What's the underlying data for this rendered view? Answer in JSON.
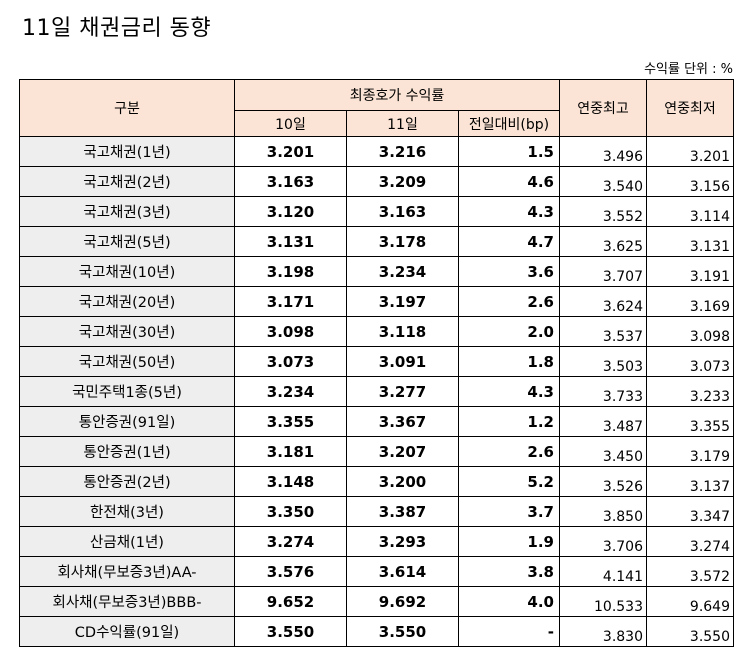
{
  "title": "11일 채권금리 동향",
  "unit_label": "수익률 단위 : %",
  "headers": {
    "category": "구분",
    "final_yield": "최종호가 수익률",
    "day10": "10일",
    "day11": "11일",
    "change": "전일대비(bp)",
    "year_high": "연중최고",
    "year_low": "연중최저"
  },
  "rows": [
    {
      "name": "국고채권(1년)",
      "d10": "3.201",
      "d11": "3.216",
      "chg": "1.5",
      "high": "3.496",
      "low": "3.201"
    },
    {
      "name": "국고채권(2년)",
      "d10": "3.163",
      "d11": "3.209",
      "chg": "4.6",
      "high": "3.540",
      "low": "3.156"
    },
    {
      "name": "국고채권(3년)",
      "d10": "3.120",
      "d11": "3.163",
      "chg": "4.3",
      "high": "3.552",
      "low": "3.114"
    },
    {
      "name": "국고채권(5년)",
      "d10": "3.131",
      "d11": "3.178",
      "chg": "4.7",
      "high": "3.625",
      "low": "3.131"
    },
    {
      "name": "국고채권(10년)",
      "d10": "3.198",
      "d11": "3.234",
      "chg": "3.6",
      "high": "3.707",
      "low": "3.191"
    },
    {
      "name": "국고채권(20년)",
      "d10": "3.171",
      "d11": "3.197",
      "chg": "2.6",
      "high": "3.624",
      "low": "3.169"
    },
    {
      "name": "국고채권(30년)",
      "d10": "3.098",
      "d11": "3.118",
      "chg": "2.0",
      "high": "3.537",
      "low": "3.098"
    },
    {
      "name": "국고채권(50년)",
      "d10": "3.073",
      "d11": "3.091",
      "chg": "1.8",
      "high": "3.503",
      "low": "3.073"
    },
    {
      "name": "국민주택1종(5년)",
      "d10": "3.234",
      "d11": "3.277",
      "chg": "4.3",
      "high": "3.733",
      "low": "3.233"
    },
    {
      "name": "통안증권(91일)",
      "d10": "3.355",
      "d11": "3.367",
      "chg": "1.2",
      "high": "3.487",
      "low": "3.355"
    },
    {
      "name": "통안증권(1년)",
      "d10": "3.181",
      "d11": "3.207",
      "chg": "2.6",
      "high": "3.450",
      "low": "3.179"
    },
    {
      "name": "통안증권(2년)",
      "d10": "3.148",
      "d11": "3.200",
      "chg": "5.2",
      "high": "3.526",
      "low": "3.137"
    },
    {
      "name": "한전채(3년)",
      "d10": "3.350",
      "d11": "3.387",
      "chg": "3.7",
      "high": "3.850",
      "low": "3.347"
    },
    {
      "name": "산금채(1년)",
      "d10": "3.274",
      "d11": "3.293",
      "chg": "1.9",
      "high": "3.706",
      "low": "3.274"
    },
    {
      "name": "회사채(무보증3년)AA-",
      "d10": "3.576",
      "d11": "3.614",
      "chg": "3.8",
      "high": "4.141",
      "low": "3.572"
    },
    {
      "name": "회사채(무보증3년)BBB-",
      "d10": "9.652",
      "d11": "9.692",
      "chg": "4.0",
      "high": "10.533",
      "low": "9.649"
    },
    {
      "name": "CD수익률(91일)",
      "d10": "3.550",
      "d11": "3.550",
      "chg": "-",
      "high": "3.830",
      "low": "3.550"
    }
  ],
  "colors": {
    "header_bg": "#fbe4d5",
    "name_bg": "#eeeeee"
  }
}
